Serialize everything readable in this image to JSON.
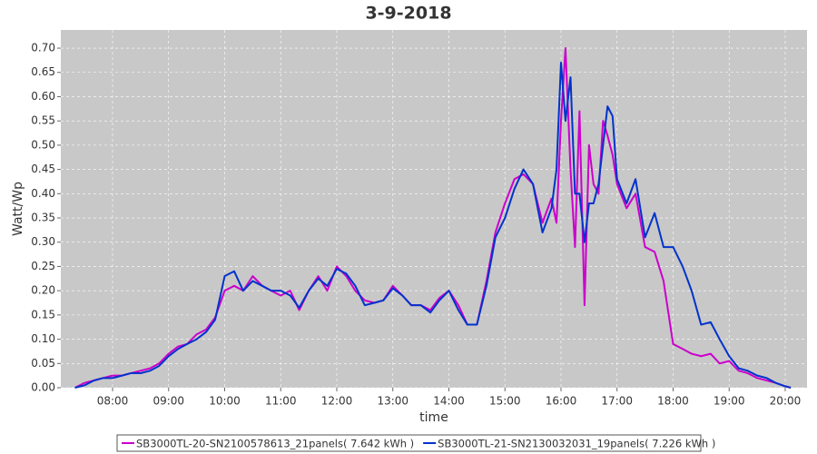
{
  "chart_data": {
    "type": "line",
    "title": "3-9-2018",
    "x_label": "time",
    "y_label": "Watt/Wp",
    "x": [
      7.33,
      7.5,
      7.67,
      7.83,
      8.0,
      8.17,
      8.33,
      8.5,
      8.67,
      8.83,
      9.0,
      9.17,
      9.33,
      9.5,
      9.67,
      9.83,
      10.0,
      10.17,
      10.33,
      10.5,
      10.67,
      10.83,
      11.0,
      11.17,
      11.33,
      11.5,
      11.67,
      11.83,
      12.0,
      12.17,
      12.33,
      12.5,
      12.67,
      12.83,
      13.0,
      13.17,
      13.33,
      13.5,
      13.67,
      13.83,
      14.0,
      14.17,
      14.33,
      14.5,
      14.67,
      14.83,
      15.0,
      15.17,
      15.33,
      15.5,
      15.67,
      15.83,
      15.92,
      16.0,
      16.08,
      16.17,
      16.25,
      16.33,
      16.42,
      16.5,
      16.58,
      16.67,
      16.75,
      16.83,
      16.92,
      17.0,
      17.17,
      17.33,
      17.5,
      17.67,
      17.83,
      18.0,
      18.17,
      18.33,
      18.5,
      18.67,
      18.83,
      19.0,
      19.17,
      19.33,
      19.5,
      19.67,
      19.83,
      20.0,
      20.1
    ],
    "series": [
      {
        "name": "SB3000TL-20-SN2100578613_21panels( 7.642 kWh )",
        "color": "#cc00cc",
        "values": [
          0.0,
          0.01,
          0.015,
          0.02,
          0.025,
          0.025,
          0.03,
          0.035,
          0.04,
          0.05,
          0.07,
          0.085,
          0.09,
          0.11,
          0.12,
          0.145,
          0.2,
          0.21,
          0.2,
          0.23,
          0.21,
          0.2,
          0.19,
          0.2,
          0.16,
          0.2,
          0.23,
          0.2,
          0.25,
          0.23,
          0.2,
          0.18,
          0.175,
          0.18,
          0.21,
          0.19,
          0.17,
          0.17,
          0.16,
          0.185,
          0.2,
          0.17,
          0.13,
          0.13,
          0.22,
          0.32,
          0.38,
          0.43,
          0.44,
          0.42,
          0.34,
          0.39,
          0.34,
          0.55,
          0.7,
          0.45,
          0.29,
          0.57,
          0.17,
          0.5,
          0.42,
          0.4,
          0.55,
          0.52,
          0.48,
          0.42,
          0.37,
          0.4,
          0.29,
          0.28,
          0.22,
          0.09,
          0.08,
          0.07,
          0.065,
          0.07,
          0.05,
          0.055,
          0.035,
          0.03,
          0.02,
          0.015,
          0.01,
          0.003,
          0.0
        ]
      },
      {
        "name": "SB3000TL-21-SN2130032031_19panels( 7.226 kWh )",
        "color": "#0033cc",
        "values": [
          0.0,
          0.005,
          0.015,
          0.02,
          0.02,
          0.025,
          0.03,
          0.03,
          0.035,
          0.045,
          0.065,
          0.08,
          0.09,
          0.1,
          0.115,
          0.14,
          0.23,
          0.24,
          0.2,
          0.22,
          0.21,
          0.2,
          0.2,
          0.19,
          0.165,
          0.2,
          0.225,
          0.21,
          0.245,
          0.235,
          0.21,
          0.17,
          0.175,
          0.18,
          0.205,
          0.19,
          0.17,
          0.17,
          0.155,
          0.18,
          0.2,
          0.16,
          0.13,
          0.13,
          0.21,
          0.31,
          0.35,
          0.41,
          0.45,
          0.42,
          0.32,
          0.37,
          0.45,
          0.67,
          0.55,
          0.64,
          0.4,
          0.4,
          0.3,
          0.38,
          0.38,
          0.42,
          0.5,
          0.58,
          0.56,
          0.43,
          0.38,
          0.43,
          0.31,
          0.36,
          0.29,
          0.29,
          0.25,
          0.2,
          0.13,
          0.135,
          0.1,
          0.065,
          0.04,
          0.035,
          0.025,
          0.02,
          0.01,
          0.003,
          0.0
        ]
      }
    ],
    "xlim": [
      7.077,
      20.389
    ],
    "xticks": [
      {
        "value": 8,
        "label": "08:00"
      },
      {
        "value": 9,
        "label": "09:00"
      },
      {
        "value": 10,
        "label": "10:00"
      },
      {
        "value": 11,
        "label": "11:00"
      },
      {
        "value": 12,
        "label": "12:00"
      },
      {
        "value": 13,
        "label": "13:00"
      },
      {
        "value": 14,
        "label": "14:00"
      },
      {
        "value": 15,
        "label": "15:00"
      },
      {
        "value": 16,
        "label": "16:00"
      },
      {
        "value": 17,
        "label": "17:00"
      },
      {
        "value": 18,
        "label": "18:00"
      },
      {
        "value": 19,
        "label": "19:00"
      },
      {
        "value": 20,
        "label": "20:00"
      }
    ],
    "ylim": [
      0,
      0.7375
    ],
    "yticks": [
      {
        "value": 0,
        "label": "0.00"
      },
      {
        "value": 0.05,
        "label": "0.05"
      },
      {
        "value": 0.1,
        "label": "0.10"
      },
      {
        "value": 0.15,
        "label": "0.15"
      },
      {
        "value": 0.2,
        "label": "0.20"
      },
      {
        "value": 0.25,
        "label": "0.25"
      },
      {
        "value": 0.3,
        "label": "0.30"
      },
      {
        "value": 0.35,
        "label": "0.35"
      },
      {
        "value": 0.4,
        "label": "0.40"
      },
      {
        "value": 0.45,
        "label": "0.45"
      },
      {
        "value": 0.5,
        "label": "0.50"
      },
      {
        "value": 0.55,
        "label": "0.55"
      },
      {
        "value": 0.6,
        "label": "0.60"
      },
      {
        "value": 0.65,
        "label": "0.65"
      },
      {
        "value": 0.7,
        "label": "0.70"
      }
    ],
    "grid": true,
    "legend": "bottom"
  }
}
